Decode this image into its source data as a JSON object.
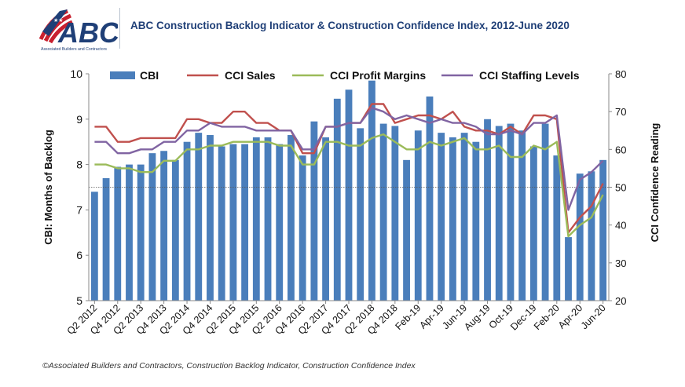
{
  "title": "ABC Construction Backlog Indicator & Construction Confidence Index, 2012-June 2020",
  "logo": {
    "text": "ABC",
    "tagline": "Associated Builders and Contractors"
  },
  "footer": "©Associated Builders and Contractors, Construction Backlog Indicator, Construction Confidence Index",
  "chart_data": {
    "type": "bar+line",
    "ylabel_left": "CBI: Months of Backlog",
    "ylabel_right": "CCI Confidence Reading",
    "ylim_left": [
      5,
      10
    ],
    "ylim_right": [
      20,
      80
    ],
    "yticks_left": [
      5,
      6,
      7,
      8,
      9,
      10
    ],
    "yticks_right": [
      20,
      30,
      40,
      50,
      60,
      70,
      80
    ],
    "reference_line_right": 50,
    "legend_position": "top",
    "x_tick_labels": [
      "Q2 2012",
      "Q4 2012",
      "Q2 2013",
      "Q4 2013",
      "Q2 2014",
      "Q4 2014",
      "Q2 2015",
      "Q4 2015",
      "Q2 2016",
      "Q4 2016",
      "Q2 2017",
      "Q4 2017",
      "Q2 2018",
      "Q4 2018",
      "Feb-19",
      "Apr-19",
      "Jun-19",
      "Aug-19",
      "Oct-19",
      "Dec-19",
      "Feb-20",
      "Apr-20",
      "Jun-20"
    ],
    "x_tick_positions": [
      0,
      2,
      4,
      6,
      8,
      10,
      12,
      14,
      16,
      18,
      20,
      22,
      24,
      26,
      28,
      30,
      32,
      34,
      36,
      38,
      40,
      42,
      44
    ],
    "n_points": 45,
    "series": [
      {
        "name": "CBI",
        "kind": "bar",
        "axis": "left",
        "color": "#4a7ebb",
        "values": [
          7.4,
          7.7,
          7.95,
          8.0,
          8.0,
          8.25,
          8.3,
          8.1,
          8.5,
          8.7,
          8.65,
          8.4,
          8.45,
          8.45,
          8.6,
          8.6,
          8.45,
          8.65,
          8.2,
          8.95,
          8.6,
          9.45,
          9.65,
          8.8,
          9.85,
          8.9,
          8.85,
          8.1,
          8.75,
          9.5,
          8.7,
          8.6,
          8.7,
          8.5,
          9.0,
          8.85,
          8.9,
          8.75,
          8.4,
          8.9,
          8.2,
          6.4,
          7.8,
          7.85,
          8.1
        ]
      },
      {
        "name": "CCI Sales",
        "kind": "line",
        "axis": "right",
        "color": "#c0504d",
        "values": [
          66,
          66,
          62,
          62,
          63,
          63,
          63,
          63,
          68,
          68,
          67,
          67,
          70,
          70,
          67,
          67,
          65,
          65,
          59,
          59,
          66,
          66,
          67,
          67,
          72,
          72,
          67,
          68,
          69,
          69,
          68,
          70,
          66,
          65,
          65,
          64,
          66,
          64,
          69,
          69,
          68,
          38,
          42,
          45,
          51
        ]
      },
      {
        "name": "CCI Profit Margins",
        "kind": "line",
        "axis": "right",
        "color": "#9bbb59",
        "values": [
          56,
          56,
          55,
          55,
          54,
          54,
          57,
          57,
          60,
          60,
          61,
          61,
          62,
          62,
          62,
          62,
          61,
          61,
          56,
          56,
          62,
          62,
          61,
          61,
          63,
          64,
          62,
          60,
          60,
          62,
          61,
          62,
          63,
          60,
          60,
          61,
          58,
          58,
          61,
          60,
          62,
          37,
          40,
          42,
          48
        ]
      },
      {
        "name": "CCI Staffing Levels",
        "kind": "line",
        "axis": "right",
        "color": "#8064a2",
        "values": [
          62,
          62,
          59,
          59,
          60,
          60,
          62,
          62,
          65,
          65,
          67,
          66,
          66,
          66,
          65,
          65,
          65,
          65,
          60,
          60,
          66,
          66,
          67,
          67,
          71,
          70,
          68,
          69,
          68,
          67,
          68,
          67,
          67,
          66,
          64,
          64,
          65,
          64,
          67,
          67,
          69,
          44,
          52,
          54,
          57
        ]
      }
    ]
  }
}
